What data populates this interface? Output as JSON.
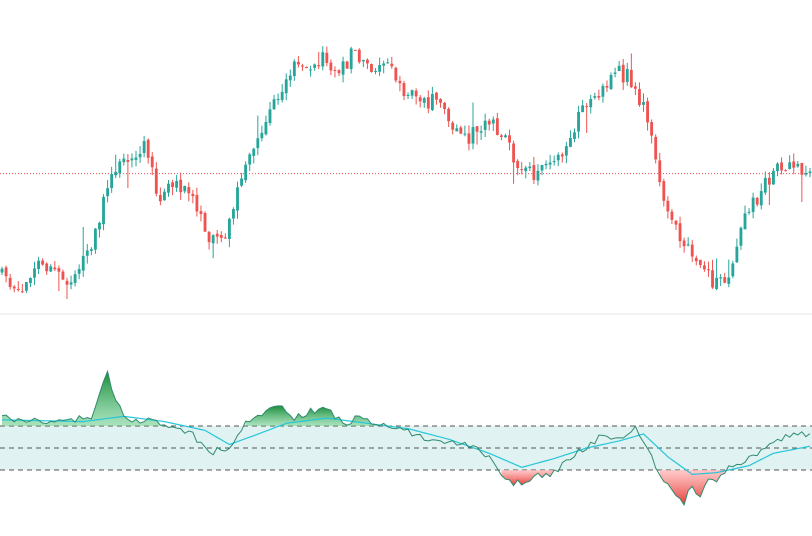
{
  "colors": {
    "up": "#26a69a",
    "down": "#ef5350",
    "price_line": "#ef5350",
    "osc_line": "#2e8b6e",
    "signal_line": "#26c6da",
    "band_fill": "#e0f2f1",
    "band_lines": "#555555",
    "pane_separator": "#e6e6e6"
  },
  "chart_data": [
    {
      "type": "candlestick",
      "title": "",
      "xlabel": "",
      "ylabel": "",
      "grid": false,
      "ylim": [
        0,
        100
      ],
      "last_price": 50.5,
      "candles": {
        "count": 200,
        "path_anchors": [
          [
            0,
            15
          ],
          [
            5,
            8
          ],
          [
            10,
            18
          ],
          [
            14,
            14
          ],
          [
            18,
            12
          ],
          [
            22,
            20
          ],
          [
            26,
            40
          ],
          [
            28,
            52
          ],
          [
            32,
            55
          ],
          [
            36,
            62
          ],
          [
            40,
            40
          ],
          [
            44,
            48
          ],
          [
            48,
            42
          ],
          [
            52,
            25
          ],
          [
            56,
            28
          ],
          [
            60,
            48
          ],
          [
            64,
            62
          ],
          [
            68,
            76
          ],
          [
            72,
            88
          ],
          [
            76,
            90
          ],
          [
            80,
            93
          ],
          [
            84,
            86
          ],
          [
            88,
            96
          ],
          [
            92,
            88
          ],
          [
            96,
            90
          ],
          [
            100,
            80
          ],
          [
            104,
            76
          ],
          [
            108,
            78
          ],
          [
            112,
            68
          ],
          [
            116,
            64
          ],
          [
            120,
            70
          ],
          [
            124,
            66
          ],
          [
            128,
            52
          ],
          [
            132,
            50
          ],
          [
            136,
            56
          ],
          [
            140,
            58
          ],
          [
            144,
            76
          ],
          [
            148,
            80
          ],
          [
            152,
            88
          ],
          [
            156,
            85
          ],
          [
            160,
            70
          ],
          [
            164,
            42
          ],
          [
            168,
            28
          ],
          [
            172,
            20
          ],
          [
            176,
            10
          ],
          [
            180,
            14
          ],
          [
            184,
            36
          ],
          [
            188,
            44
          ],
          [
            192,
            52
          ],
          [
            196,
            55
          ],
          [
            199,
            51
          ]
        ]
      }
    },
    {
      "type": "area",
      "title": "",
      "xlabel": "",
      "ylabel": "",
      "grid": false,
      "ylim": [
        -100,
        100
      ],
      "levels": [
        25,
        0,
        -25
      ],
      "series": [
        {
          "role": "oscillator",
          "anchors": [
            [
              0,
              35
            ],
            [
              10,
              30
            ],
            [
              16,
              30
            ],
            [
              22,
              36
            ],
            [
              26,
              88
            ],
            [
              28,
              52
            ],
            [
              32,
              28
            ],
            [
              36,
              32
            ],
            [
              42,
              20
            ],
            [
              46,
              18
            ],
            [
              52,
              -5
            ],
            [
              56,
              2
            ],
            [
              58,
              12
            ],
            [
              60,
              30
            ],
            [
              64,
              38
            ],
            [
              68,
              50
            ],
            [
              72,
              34
            ],
            [
              76,
              42
            ],
            [
              80,
              46
            ],
            [
              84,
              28
            ],
            [
              88,
              34
            ],
            [
              92,
              30
            ],
            [
              96,
              22
            ],
            [
              100,
              18
            ],
            [
              104,
              12
            ],
            [
              108,
              10
            ],
            [
              112,
              5
            ],
            [
              116,
              0
            ],
            [
              120,
              -10
            ],
            [
              124,
              -38
            ],
            [
              128,
              -40
            ],
            [
              132,
              -30
            ],
            [
              136,
              -28
            ],
            [
              140,
              -10
            ],
            [
              144,
              2
            ],
            [
              148,
              14
            ],
            [
              152,
              10
            ],
            [
              156,
              26
            ],
            [
              158,
              8
            ],
            [
              162,
              -30
            ],
            [
              166,
              -52
            ],
            [
              168,
              -62
            ],
            [
              170,
              -40
            ],
            [
              172,
              -58
            ],
            [
              174,
              -35
            ],
            [
              176,
              -35
            ],
            [
              180,
              -20
            ],
            [
              184,
              -10
            ],
            [
              188,
              0
            ],
            [
              192,
              10
            ],
            [
              196,
              18
            ],
            [
              199,
              14
            ]
          ]
        },
        {
          "role": "signal",
          "anchors": [
            [
              0,
              32
            ],
            [
              20,
              30
            ],
            [
              30,
              36
            ],
            [
              40,
              30
            ],
            [
              50,
              20
            ],
            [
              56,
              4
            ],
            [
              62,
              14
            ],
            [
              70,
              28
            ],
            [
              80,
              34
            ],
            [
              90,
              28
            ],
            [
              100,
              22
            ],
            [
              110,
              10
            ],
            [
              120,
              -6
            ],
            [
              128,
              -22
            ],
            [
              136,
              -12
            ],
            [
              144,
              0
            ],
            [
              152,
              8
            ],
            [
              158,
              16
            ],
            [
              164,
              -10
            ],
            [
              170,
              -30
            ],
            [
              176,
              -28
            ],
            [
              184,
              -20
            ],
            [
              190,
              -6
            ],
            [
              199,
              2
            ]
          ]
        }
      ]
    }
  ]
}
